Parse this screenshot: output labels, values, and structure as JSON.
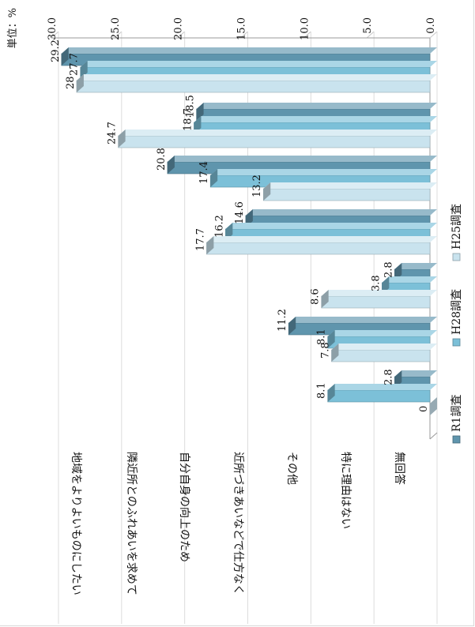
{
  "chart_data": {
    "type": "bar",
    "unit_label": "単位：%",
    "categories": [
      "地域をよりよいものにしたい",
      "隣近所とのふれあいを求めて",
      "自分自身の向上のため",
      "近所づきあいなどで仕方なく",
      "その他",
      "特に理由はない",
      "無回答"
    ],
    "series": [
      {
        "name": "R1調査",
        "values": [
          29.2,
          18.5,
          20.8,
          14.6,
          2.8,
          11.2,
          2.8
        ],
        "color": "#5f95ad"
      },
      {
        "name": "H28調査",
        "values": [
          27.7,
          18.7,
          17.4,
          16.2,
          3.8,
          8.1,
          8.1
        ],
        "color": "#7cc0d8"
      },
      {
        "name": "H25調査",
        "values": [
          28,
          24.7,
          13.2,
          17.7,
          8.6,
          7.8,
          0
        ],
        "color": "#c9e3ee"
      }
    ],
    "value_labels": [
      [
        "29.2",
        "18.5",
        "20.8",
        "14.6",
        "2.8",
        "11.2",
        "2.8"
      ],
      [
        "27.7",
        "18.7",
        "17.4",
        "16.2",
        "3.8",
        "8.1",
        "8.1"
      ],
      [
        "28",
        "24.7",
        "13.2",
        "17.7",
        "8.6",
        "7.8",
        "0"
      ]
    ],
    "value_axis": {
      "range": [
        0,
        30
      ],
      "ticks": [
        0,
        5,
        10,
        15,
        20,
        25,
        30
      ],
      "tick_labels": [
        "0.0",
        "5.0",
        "10.0",
        "15.0",
        "20.0",
        "25.0",
        "30.0"
      ]
    },
    "grid": true,
    "legend_placement": "right",
    "orientation": "rotated 90° clockwise (value axis runs along the top edge)"
  }
}
